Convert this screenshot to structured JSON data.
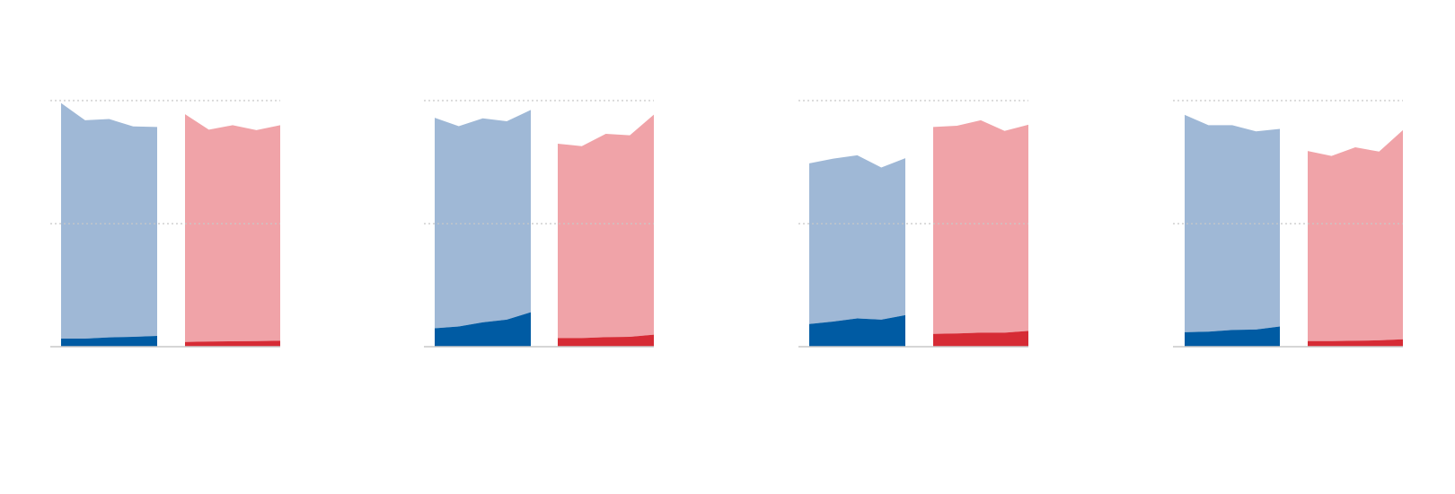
{
  "chart_data": {
    "type": "area",
    "ylim": [
      0,
      100
    ],
    "grid": true,
    "gridlines": [
      50,
      100
    ],
    "colors": {
      "blue_light": "#9fb8d6",
      "blue_dark": "#005ba3",
      "red_light": "#f0a3a8",
      "red_dark": "#d62b35",
      "grid": "#c8c8c8",
      "baseline": "#c8c8c8"
    },
    "panels": [
      {
        "groups": [
          {
            "color": "blue",
            "total": [
              99,
              92,
              92.5,
              89.5,
              89.3
            ],
            "base": [
              3.3,
              3.3,
              3.8,
              4.0,
              4.4
            ]
          },
          {
            "color": "red",
            "total": [
              94.5,
              88.2,
              90.0,
              88.0,
              90.0
            ],
            "base": [
              1.9,
              2.1,
              2.2,
              2.3,
              2.4
            ]
          }
        ]
      },
      {
        "groups": [
          {
            "color": "blue",
            "total": [
              93,
              89.6,
              92.8,
              91.6,
              96.2
            ],
            "base": [
              7.5,
              8.2,
              9.9,
              11.0,
              14.0
            ]
          },
          {
            "color": "red",
            "total": [
              82.5,
              81.5,
              86.5,
              85.9,
              94.3
            ],
            "base": [
              3.5,
              3.5,
              3.9,
              4.0,
              4.9
            ]
          }
        ]
      },
      {
        "groups": [
          {
            "color": "blue",
            "total": [
              74.5,
              76.4,
              77.8,
              72.8,
              76.6
            ],
            "base": [
              9.2,
              10.2,
              11.5,
              11.0,
              12.8
            ]
          },
          {
            "color": "red",
            "total": [
              89.3,
              89.8,
              92.0,
              87.7,
              90.2
            ],
            "base": [
              5.2,
              5.4,
              5.7,
              5.7,
              6.4
            ]
          }
        ]
      },
      {
        "groups": [
          {
            "color": "blue",
            "total": [
              94.2,
              90.0,
              90.0,
              87.5,
              88.5
            ],
            "base": [
              5.9,
              6.1,
              6.8,
              7.0,
              8.2
            ]
          },
          {
            "color": "red",
            "total": [
              79.5,
              77.5,
              81.0,
              79.3,
              88.0
            ],
            "base": [
              2.3,
              2.3,
              2.4,
              2.6,
              3.0
            ]
          }
        ]
      }
    ]
  }
}
